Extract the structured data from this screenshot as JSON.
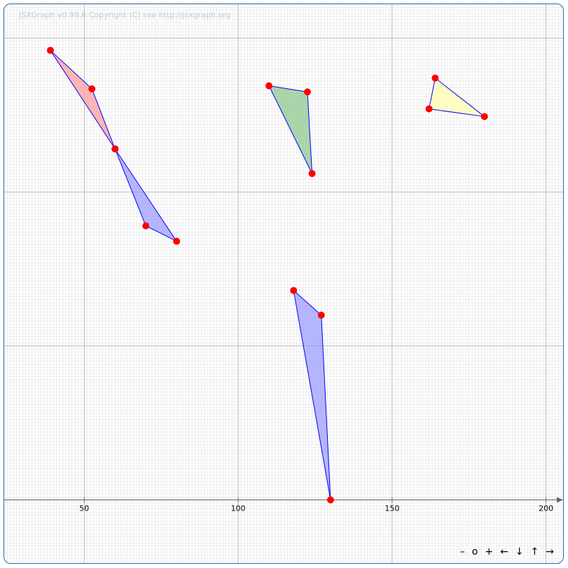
{
  "copyright": "JSXGraph v0.99.6 Copyright (C) see http://jsxgraph.org",
  "x_axis": {
    "ticks": [
      "50",
      "100",
      "150",
      "200"
    ]
  },
  "navigation": {
    "zoom_out": "–",
    "zoom_reset": "o",
    "zoom_in": "+",
    "left": "←",
    "down": "↓",
    "up": "↑",
    "right": "→"
  },
  "colors": {
    "point": "#ff0000",
    "edge": "#0000ff",
    "grid_minor": "#c0c0c0",
    "grid_major": "#808080",
    "frame": "#356aa0"
  },
  "chart_data": {
    "type": "geometry",
    "x_range": [
      24,
      206
    ],
    "y_range": [
      -21,
      161
    ],
    "polygons": [
      {
        "fill": "#ff9090",
        "points": [
          [
            39,
            146
          ],
          [
            52.5,
            133.5
          ],
          [
            60,
            114
          ]
        ]
      },
      {
        "fill": "#9090ff",
        "points": [
          [
            60,
            114
          ],
          [
            70,
            89
          ],
          [
            80,
            84
          ]
        ]
      },
      {
        "fill": "#80c080",
        "points": [
          [
            110,
            134.5
          ],
          [
            122.5,
            132.5
          ],
          [
            124,
            106
          ]
        ]
      },
      {
        "fill": "#ffffa8",
        "points": [
          [
            164,
            137
          ],
          [
            162,
            127
          ],
          [
            180,
            124.5
          ]
        ]
      },
      {
        "fill": "#9090ff",
        "points": [
          [
            118,
            68
          ],
          [
            127,
            60
          ],
          [
            130,
            0
          ]
        ]
      }
    ]
  }
}
